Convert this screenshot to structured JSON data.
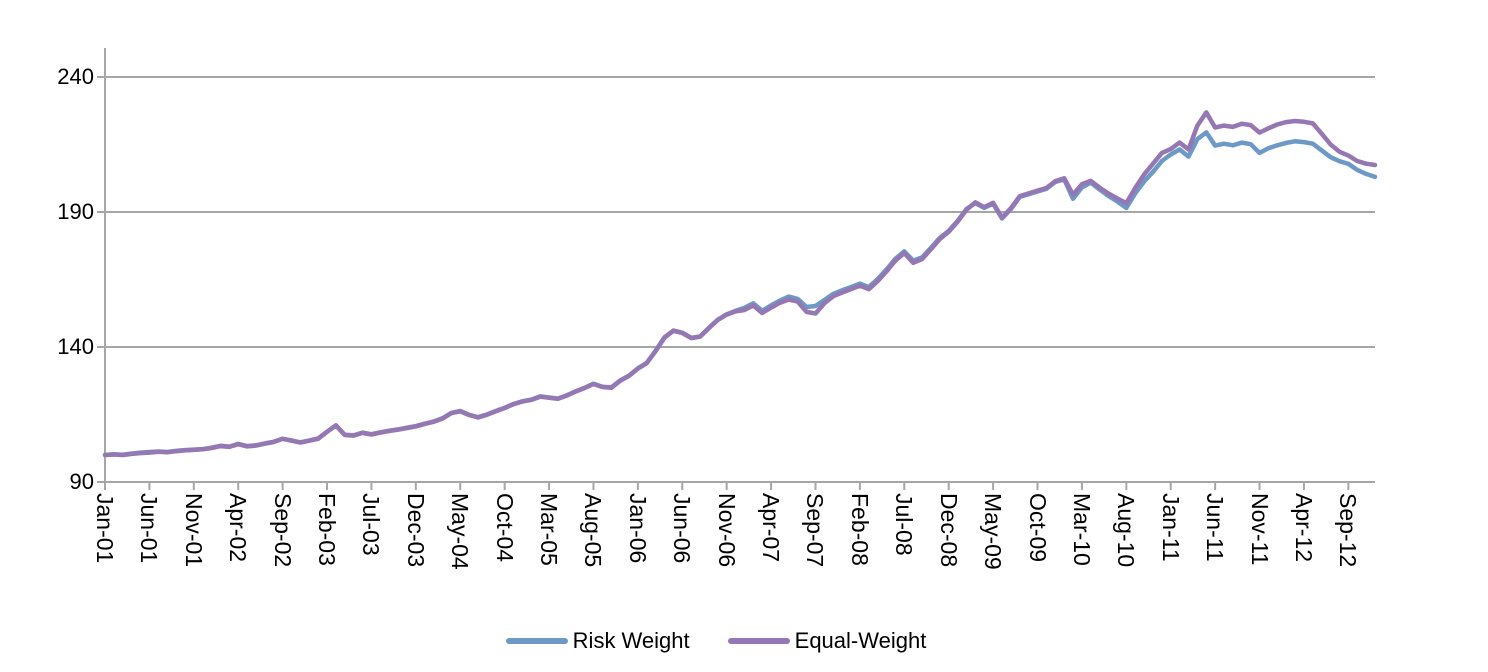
{
  "chart_data": {
    "type": "line",
    "title": "",
    "legend_position": "bottom",
    "grid": true,
    "x_axis": {
      "unit": "month",
      "tick_every": 5,
      "tick_labels": [
        "Jan-01",
        "Jun-01",
        "Nov-01",
        "Apr-02",
        "Sep-02",
        "Feb-03",
        "Jul-03",
        "Dec-03",
        "May-04",
        "Oct-04",
        "Mar-05",
        "Aug-05",
        "Jan-06",
        "Jun-06",
        "Nov-06",
        "Apr-07",
        "Sep-07",
        "Feb-08",
        "Jul-08",
        "Dec-08",
        "May-09",
        "Oct-09",
        "Mar-10",
        "Aug-10",
        "Jan-11",
        "Jun-11",
        "Nov-11",
        "Apr-12",
        "Sep-12"
      ]
    },
    "y_axis": {
      "range": [
        90,
        240
      ],
      "ticks": [
        90,
        140,
        190,
        240
      ],
      "tick_labels": [
        "90",
        "140",
        "190",
        "240"
      ]
    },
    "series": [
      {
        "name": "Risk Weight",
        "color": "#6D99C7",
        "values": [
          100.0,
          100.3,
          100.1,
          100.5,
          100.9,
          101.1,
          101.3,
          101.1,
          101.5,
          101.8,
          102.0,
          102.2,
          102.7,
          103.4,
          103.1,
          104.1,
          103.3,
          103.6,
          104.3,
          104.9,
          106.0,
          105.4,
          104.7,
          105.4,
          106.1,
          108.6,
          110.9,
          107.5,
          107.3,
          108.3,
          107.7,
          108.4,
          109.0,
          109.5,
          110.1,
          110.7,
          111.6,
          112.4,
          113.6,
          115.6,
          116.3,
          114.9,
          114.0,
          115.0,
          116.3,
          117.5,
          118.9,
          119.9,
          120.5,
          121.7,
          121.3,
          120.9,
          122.1,
          123.6,
          124.9,
          126.4,
          125.3,
          125.0,
          127.6,
          129.4,
          132.1,
          134.1,
          138.6,
          143.6,
          146.1,
          145.3,
          143.4,
          143.9,
          147.1,
          150.1,
          152.1,
          153.4,
          154.5,
          156.2,
          153.4,
          155.4,
          157.2,
          158.7,
          157.8,
          154.8,
          155.2,
          157.4,
          159.7,
          161.0,
          162.2,
          163.5,
          162.2,
          165.2,
          168.7,
          172.7,
          175.4,
          172.0,
          173.2,
          176.7,
          180.4,
          183.0,
          186.7,
          191.1,
          193.3,
          191.5,
          193.1,
          187.6,
          191.1,
          195.6,
          196.6,
          197.6,
          198.6,
          201.1,
          202.1,
          194.9,
          199.1,
          200.9,
          198.3,
          195.9,
          193.9,
          191.5,
          196.9,
          201.3,
          204.9,
          208.9,
          211.3,
          213.2,
          210.5,
          217.0,
          219.5,
          214.6,
          215.3,
          214.7,
          215.7,
          215.1,
          211.9,
          213.6,
          214.7,
          215.6,
          216.2,
          215.9,
          215.3,
          212.8,
          210.3,
          208.8,
          207.8,
          205.6,
          204.1,
          203.0
        ]
      },
      {
        "name": "Equal-Weight",
        "color": "#9477B3",
        "values": [
          100.0,
          100.2,
          100.0,
          100.4,
          100.7,
          100.9,
          101.2,
          101.0,
          101.4,
          101.7,
          101.9,
          102.1,
          102.6,
          103.3,
          103.0,
          104.0,
          103.2,
          103.5,
          104.2,
          104.8,
          106.0,
          105.3,
          104.6,
          105.3,
          106.0,
          108.6,
          111.0,
          107.4,
          107.2,
          108.2,
          107.6,
          108.3,
          108.9,
          109.4,
          110.0,
          110.6,
          111.5,
          112.3,
          113.5,
          115.5,
          116.2,
          114.8,
          113.9,
          114.9,
          116.2,
          117.4,
          118.8,
          119.8,
          120.4,
          121.6,
          121.2,
          120.8,
          122.0,
          123.5,
          124.8,
          126.3,
          125.2,
          124.9,
          127.5,
          129.3,
          132.0,
          134.0,
          138.5,
          143.5,
          146.0,
          145.2,
          143.3,
          143.8,
          147.0,
          150.0,
          152.0,
          153.2,
          153.7,
          155.4,
          152.6,
          154.6,
          156.4,
          157.6,
          156.8,
          153.0,
          152.4,
          156.2,
          158.8,
          160.2,
          161.4,
          162.7,
          161.4,
          164.4,
          168.0,
          172.0,
          174.8,
          171.2,
          172.6,
          176.2,
          180.0,
          182.7,
          186.4,
          190.8,
          193.6,
          191.8,
          193.4,
          187.9,
          191.4,
          195.9,
          196.9,
          197.9,
          198.9,
          201.4,
          202.5,
          196.4,
          200.3,
          201.5,
          199.0,
          196.8,
          195.0,
          193.3,
          198.9,
          203.9,
          207.9,
          211.9,
          213.3,
          215.7,
          213.2,
          222.0,
          226.9,
          221.3,
          222.0,
          221.5,
          222.7,
          222.2,
          219.4,
          221.0,
          222.4,
          223.3,
          223.7,
          223.4,
          222.8,
          219.0,
          215.0,
          212.3,
          210.9,
          208.9,
          207.9,
          207.4
        ]
      }
    ],
    "style": {
      "axis_color": "#A6A6A6",
      "text_color": "#000000",
      "background": "#FFFFFF"
    }
  }
}
